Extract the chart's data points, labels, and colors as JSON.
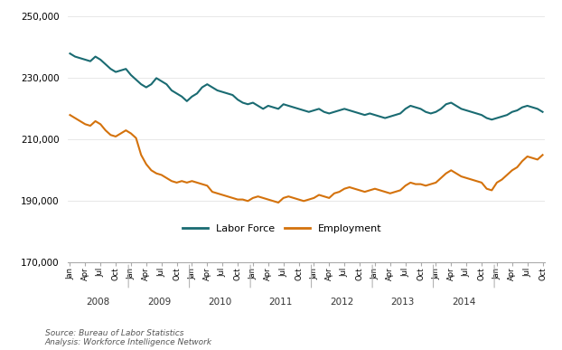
{
  "labor_force": [
    238000,
    237000,
    236500,
    236000,
    235500,
    237000,
    236000,
    234500,
    233000,
    232000,
    232500,
    233000,
    231000,
    229500,
    228000,
    227000,
    228000,
    230000,
    229000,
    228000,
    226000,
    225000,
    224000,
    222500,
    224000,
    225000,
    227000,
    228000,
    227000,
    226000,
    225500,
    225000,
    224500,
    223000,
    222000,
    221500,
    222000,
    221000,
    220000,
    221000,
    220500,
    220000,
    221500,
    221000,
    220500,
    220000,
    219500,
    219000,
    219500,
    220000,
    219000,
    218500,
    219000,
    219500,
    220000,
    219500,
    219000,
    218500,
    218000,
    218500,
    218000,
    217500,
    217000,
    217500,
    218000,
    218500,
    220000,
    221000,
    220500,
    220000,
    219000,
    218500,
    219000,
    220000,
    221500,
    222000,
    221000,
    220000,
    219500,
    219000,
    218500,
    218000,
    217000,
    216500,
    217000,
    217500,
    218000,
    219000,
    219500,
    220500,
    221000,
    220500,
    220000,
    219000
  ],
  "employment": [
    218000,
    217000,
    216000,
    215000,
    214500,
    216000,
    215000,
    213000,
    211500,
    211000,
    212000,
    213000,
    212000,
    210500,
    205000,
    202000,
    200000,
    199000,
    198500,
    197500,
    196500,
    196000,
    196500,
    196000,
    196500,
    196000,
    195500,
    195000,
    193000,
    192500,
    192000,
    191500,
    191000,
    190500,
    190500,
    190000,
    191000,
    191500,
    191000,
    190500,
    190000,
    189500,
    191000,
    191500,
    191000,
    190500,
    190000,
    190500,
    191000,
    192000,
    191500,
    191000,
    192500,
    193000,
    194000,
    194500,
    194000,
    193500,
    193000,
    193500,
    194000,
    193500,
    193000,
    192500,
    193000,
    193500,
    195000,
    196000,
    195500,
    195500,
    195000,
    195500,
    196000,
    197500,
    199000,
    200000,
    199000,
    198000,
    197500,
    197000,
    196500,
    196000,
    194000,
    193500,
    196000,
    197000,
    198500,
    200000,
    201000,
    203000,
    204500,
    204000,
    203500,
    205000
  ],
  "labor_force_color": "#1a6b72",
  "employment_color": "#d4720c",
  "ylim_min": 170000,
  "ylim_max": 252000,
  "yticks": [
    170000,
    190000,
    210000,
    230000,
    250000
  ],
  "source_text": "Source: Bureau of Labor Statistics\nAnalysis: Workforce Intelligence Network",
  "legend_labor_force": "Labor Force",
  "legend_employment": "Employment",
  "background_color": "#ffffff",
  "line_width": 1.5
}
